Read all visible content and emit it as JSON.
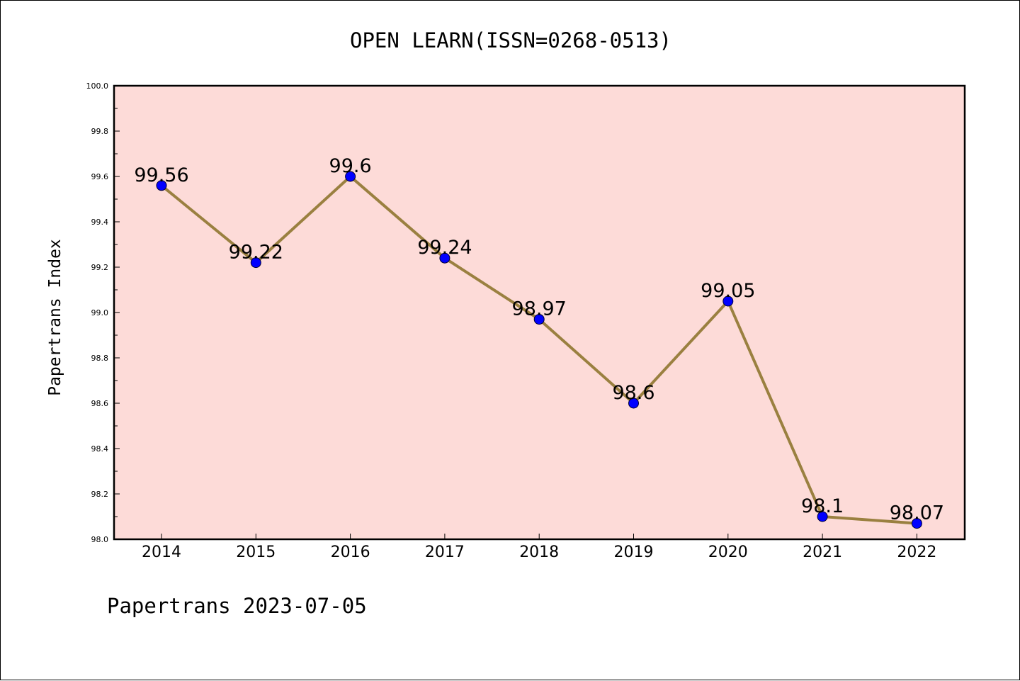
{
  "chart_data": {
    "type": "line",
    "title": "OPEN LEARN(ISSN=0268-0513)",
    "xlabel": "",
    "ylabel": "Papertrans Index",
    "footer": "Papertrans 2023-07-05",
    "categories": [
      "2014",
      "2015",
      "2016",
      "2017",
      "2018",
      "2019",
      "2020",
      "2021",
      "2022"
    ],
    "series": [
      {
        "values": [
          99.56,
          99.22,
          99.6,
          99.24,
          98.97,
          98.6,
          99.05,
          98.1,
          98.07
        ],
        "labels": [
          "99.56",
          "99.22",
          "99.6",
          "99.24",
          "98.97",
          "98.6",
          "99.05",
          "98.1",
          "98.07"
        ]
      }
    ],
    "ylim": [
      98.0,
      100.0
    ],
    "yticks": [
      "98.0",
      "98.2",
      "98.4",
      "98.6",
      "98.8",
      "99.0",
      "99.2",
      "99.4",
      "99.6",
      "99.8",
      "100.0"
    ],
    "grid": false,
    "legend": "none",
    "colors": {
      "plot_background": "#fddbd8",
      "line": "#9a8040",
      "marker": "#0000ff"
    }
  }
}
